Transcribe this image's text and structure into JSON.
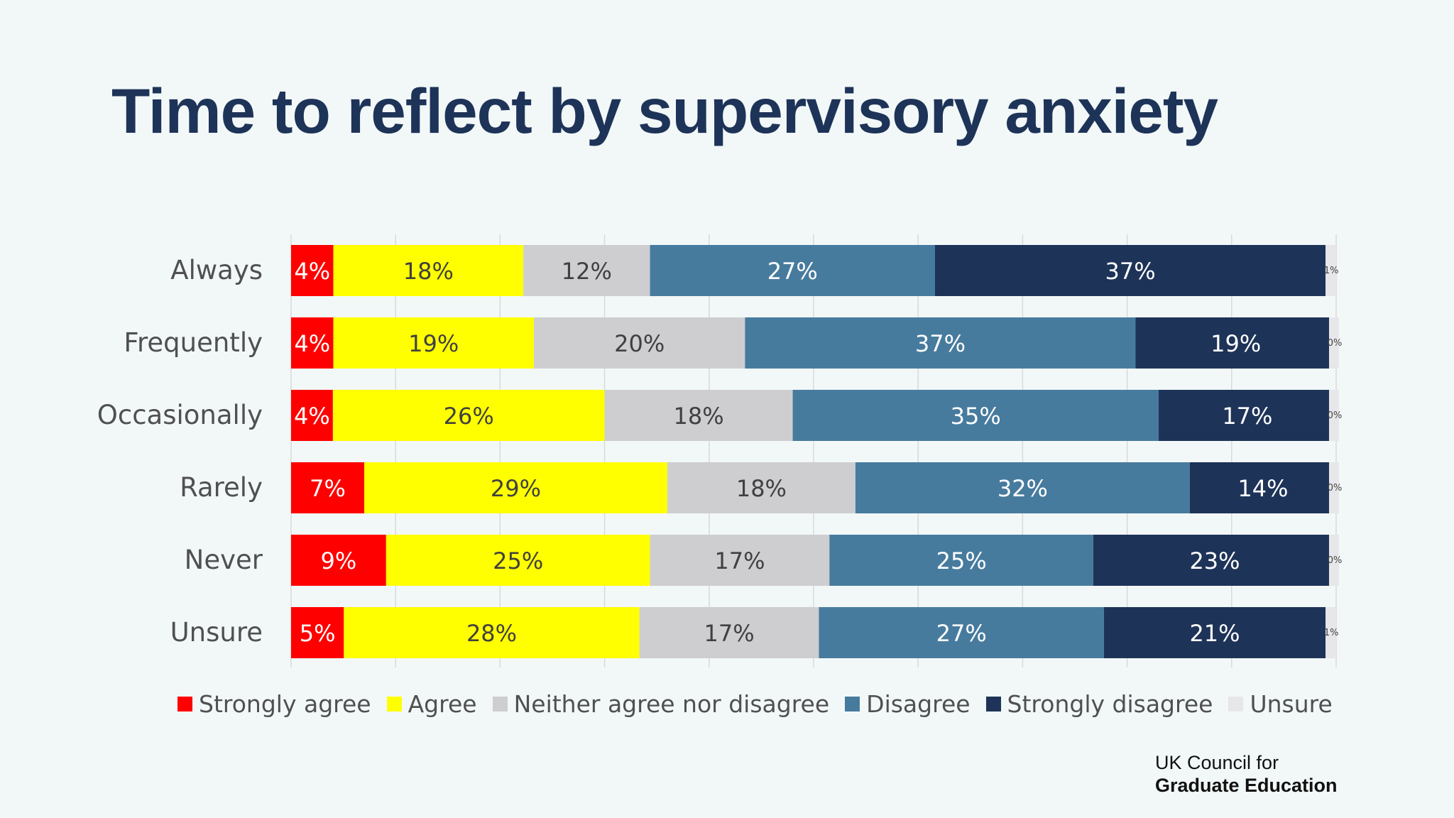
{
  "chart_data": {
    "type": "bar",
    "orientation": "horizontal",
    "stacked": true,
    "percent_stacked": true,
    "title": "Time to reflect by supervisory anxiety",
    "categories": [
      "Always",
      "Frequently",
      "Occasionally",
      "Rarely",
      "Never",
      "Unsure"
    ],
    "series": [
      {
        "name": "Strongly agree",
        "color": "#ff0000",
        "values": [
          4,
          4,
          4,
          7,
          9,
          5
        ],
        "labels": [
          "4%",
          "4%",
          "4%",
          "7%",
          "9%",
          "5%"
        ]
      },
      {
        "name": "Agree",
        "color": "#ffff00",
        "values": [
          18,
          19,
          26,
          29,
          25,
          28
        ],
        "labels": [
          "18%",
          "19%",
          "26%",
          "29%",
          "25%",
          "28%"
        ]
      },
      {
        "name": "Neither agree nor disagree",
        "color": "#cecdd0",
        "values": [
          12,
          20,
          18,
          18,
          17,
          17
        ],
        "labels": [
          "12%",
          "20%",
          "18%",
          "18%",
          "17%",
          "17%"
        ]
      },
      {
        "name": "Disagree",
        "color": "#477b9e",
        "values": [
          27,
          37,
          35,
          32,
          25,
          27
        ],
        "labels": [
          "27%",
          "37%",
          "35%",
          "32%",
          "25%",
          "27%"
        ]
      },
      {
        "name": "Strongly disagree",
        "color": "#1e3358",
        "values": [
          37,
          19,
          17,
          14,
          23,
          21
        ],
        "labels": [
          "37%",
          "19%",
          "17%",
          "14%",
          "23%",
          "21%"
        ]
      },
      {
        "name": "Unsure",
        "color": "#e7e6e9",
        "values": [
          1,
          0,
          0,
          0,
          0,
          1
        ],
        "labels": [
          "1%",
          "0%",
          "0%",
          "0%",
          "0%",
          "1%"
        ]
      }
    ],
    "xlim": [
      0,
      100
    ],
    "grid": true,
    "legend": "bottom"
  },
  "branding": {
    "line1": "UK Council for",
    "line2": "Graduate Education"
  }
}
